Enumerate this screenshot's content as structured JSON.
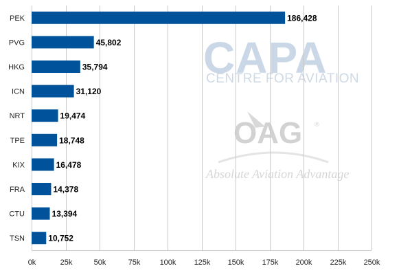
{
  "chart_data": {
    "type": "bar",
    "orientation": "horizontal",
    "categories": [
      "PEK",
      "PVG",
      "HKG",
      "ICN",
      "NRT",
      "TPE",
      "KIX",
      "FRA",
      "CTU",
      "TSN"
    ],
    "values": [
      186428,
      45802,
      35794,
      31120,
      19474,
      18748,
      16478,
      14378,
      13394,
      10752
    ],
    "value_labels": [
      "186,428",
      "45,802",
      "35,794",
      "31,120",
      "19,474",
      "18,748",
      "16,478",
      "14,378",
      "13,394",
      "10,752"
    ],
    "x_ticks": [
      "0k",
      "25k",
      "50k",
      "75k",
      "100k",
      "125k",
      "150k",
      "175k",
      "200k",
      "225k",
      "250k"
    ],
    "xlim": [
      0,
      250000
    ],
    "grid": "vertical",
    "bar_color": "#00529b"
  },
  "watermarks": {
    "capa_title": "CAPA",
    "capa_subtitle": "CENTRE FOR AVIATION",
    "oag_title": "OAG",
    "oag_registered": "®",
    "oag_subtitle": "Absolute Aviation Advantage"
  }
}
